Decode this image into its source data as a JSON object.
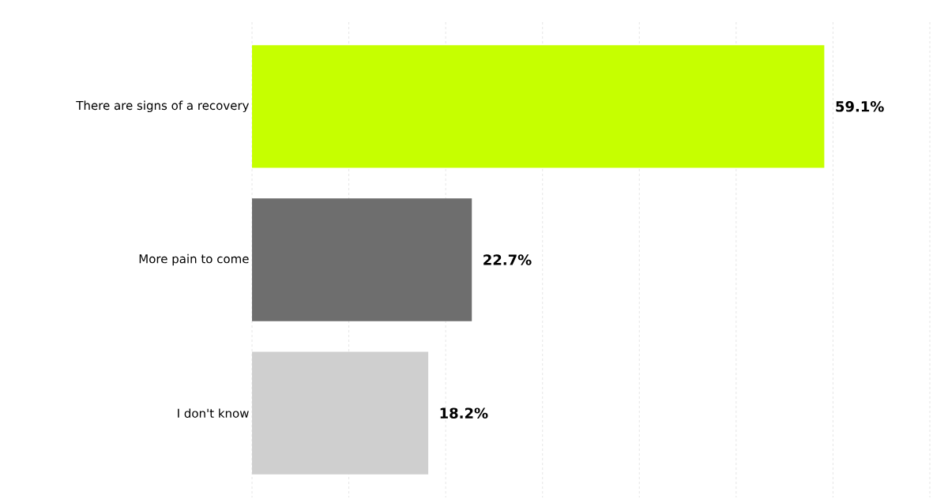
{
  "chart_data": {
    "type": "bar",
    "orientation": "horizontal",
    "categories": [
      "There are signs of a recovery",
      "More pain to come",
      "I don't know"
    ],
    "values": [
      59.1,
      22.7,
      18.2
    ],
    "colors": [
      "#c6ff00",
      "#6e6e6e",
      "#cfcfcf"
    ],
    "value_labels": [
      "59.1%",
      "22.7%",
      "18.2%"
    ],
    "xticks": [
      {
        "value": 0,
        "label": null
      },
      {
        "value": 10,
        "label": null
      },
      {
        "value": 20,
        "label": null
      },
      {
        "value": 30,
        "label": null
      },
      {
        "value": 40,
        "label": null
      },
      {
        "value": 50,
        "label": null
      },
      {
        "value": 60,
        "label": null
      },
      {
        "value": 70,
        "label": null
      }
    ],
    "grid": "x",
    "tick_labels": "y"
  }
}
